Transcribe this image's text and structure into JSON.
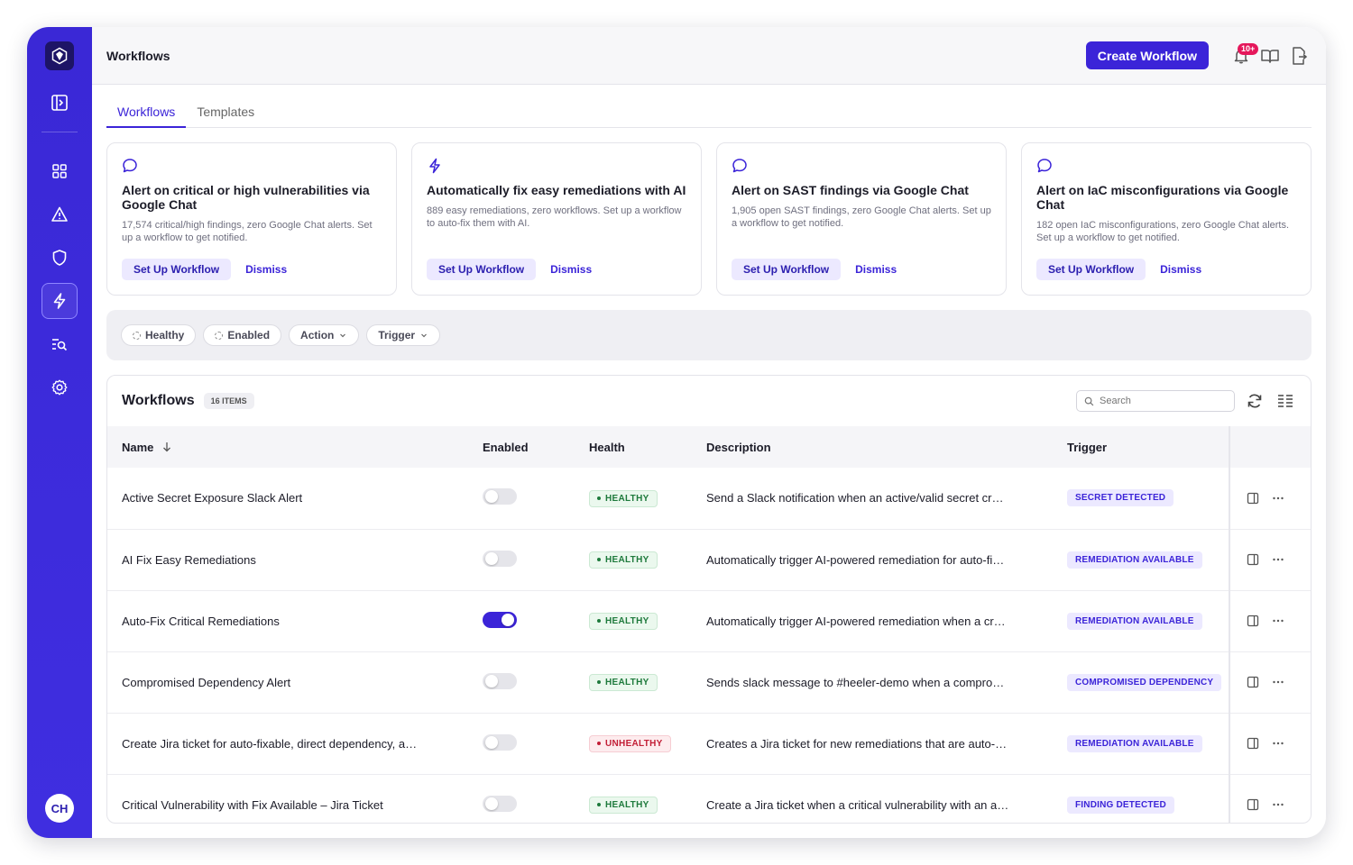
{
  "sidebar": {
    "items": [
      {
        "name": "sidebar-toggle-icon"
      },
      {
        "name": "dashboard-icon"
      },
      {
        "name": "alerts-icon"
      },
      {
        "name": "shield-icon"
      },
      {
        "name": "workflows-icon",
        "active": true
      },
      {
        "name": "search-findings-icon"
      },
      {
        "name": "settings-icon"
      }
    ],
    "avatar_initials": "CH"
  },
  "header": {
    "title": "Workflows",
    "create_label": "Create Workflow",
    "notif_count": "10+"
  },
  "tabs": [
    {
      "label": "Workflows",
      "active": true
    },
    {
      "label": "Templates",
      "active": false
    }
  ],
  "cards": [
    {
      "icon": "chat-icon",
      "title": "Alert on critical or high vulnerabilities via Google Chat",
      "desc": "17,574 critical/high findings, zero Google Chat alerts. Set up a workflow to get notified.",
      "setup": "Set Up Workflow",
      "dismiss": "Dismiss"
    },
    {
      "icon": "bolt-icon",
      "title": "Automatically fix easy remediations with AI",
      "desc": "889 easy remediations, zero workflows. Set up a workflow to auto-fix them with AI.",
      "setup": "Set Up Workflow",
      "dismiss": "Dismiss"
    },
    {
      "icon": "chat-icon",
      "title": "Alert on SAST findings via Google Chat",
      "desc": "1,905 open SAST findings, zero Google Chat alerts. Set up a workflow to get notified.",
      "setup": "Set Up Workflow",
      "dismiss": "Dismiss"
    },
    {
      "icon": "chat-icon",
      "title": "Alert on IaC misconfigurations via Google Chat",
      "desc": "182 open IaC misconfigurations, zero Google Chat alerts. Set up a workflow to get notified.",
      "setup": "Set Up Workflow",
      "dismiss": "Dismiss"
    }
  ],
  "filters": {
    "healthy": "Healthy",
    "enabled": "Enabled",
    "action": "Action",
    "trigger": "Trigger"
  },
  "table": {
    "title": "Workflows",
    "count": "16 ITEMS",
    "search_placeholder": "Search",
    "columns": {
      "name": "Name",
      "enabled": "Enabled",
      "health": "Health",
      "description": "Description",
      "trigger": "Trigger"
    },
    "rows": [
      {
        "name": "Active Secret Exposure Slack Alert",
        "enabled": false,
        "health": "HEALTHY",
        "healthy": true,
        "description": "Send a Slack notification when an active/valid secret cr…",
        "trigger": "SECRET DETECTED"
      },
      {
        "name": "AI Fix Easy Remediations",
        "enabled": false,
        "health": "HEALTHY",
        "healthy": true,
        "description": "Automatically trigger AI-powered remediation for auto-fi…",
        "trigger": "REMEDIATION AVAILABLE"
      },
      {
        "name": "Auto-Fix Critical Remediations",
        "enabled": true,
        "health": "HEALTHY",
        "healthy": true,
        "description": "Automatically trigger AI-powered remediation when a cr…",
        "trigger": "REMEDIATION AVAILABLE"
      },
      {
        "name": "Compromised Dependency Alert",
        "enabled": false,
        "health": "HEALTHY",
        "healthy": true,
        "description": "Sends slack message to #heeler-demo when a compro…",
        "trigger": "COMPROMISED DEPENDENCY"
      },
      {
        "name": "Create Jira ticket for auto-fixable, direct dependency, a…",
        "enabled": false,
        "health": "UNHEALTHY",
        "healthy": false,
        "description": "Creates a Jira ticket for new remediations that are auto-…",
        "trigger": "REMEDIATION AVAILABLE"
      },
      {
        "name": "Critical Vulnerability with Fix Available – Jira Ticket",
        "enabled": false,
        "health": "HEALTHY",
        "healthy": true,
        "description": "Create a Jira ticket when a critical vulnerability with an a…",
        "trigger": "FINDING DETECTED"
      }
    ]
  },
  "colors": {
    "accent": "#3b24d8",
    "sidebar": "#3a28d6",
    "healthy": "#1e7a3c",
    "unhealthy": "#c21e36",
    "badge": "#e5175b"
  }
}
